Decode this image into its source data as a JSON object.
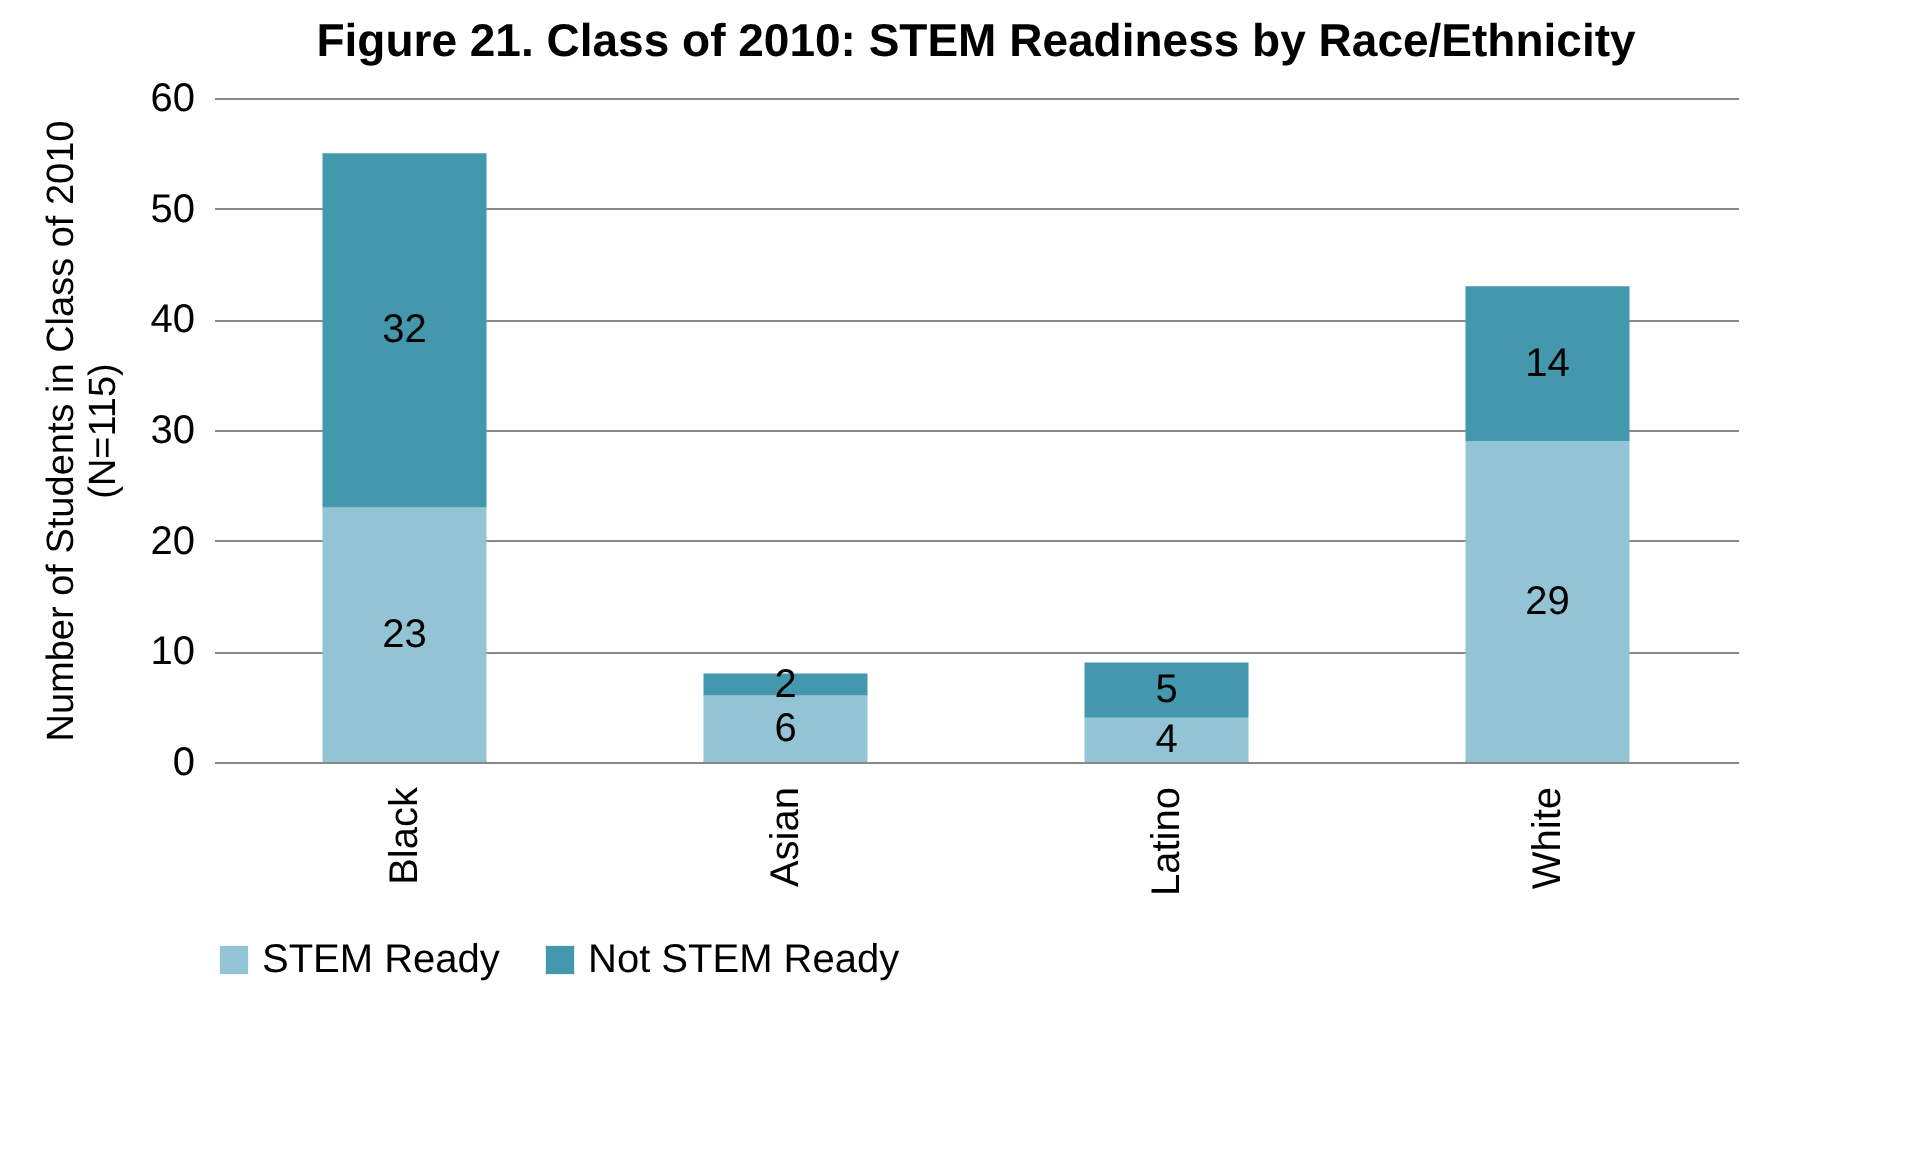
{
  "chart_data": {
    "type": "bar",
    "title": "Figure 21. Class of 2010: STEM Readiness by Race/Ethnicity",
    "ylabel": "Number of Students in Class of 2010 (N=115)",
    "categories": [
      "Black",
      "Asian",
      "Latino",
      "White"
    ],
    "stacked": true,
    "data_labels": true,
    "grid": "y",
    "legend": "bottom",
    "ylim": [
      0,
      60
    ],
    "yticks": [
      0,
      10,
      20,
      30,
      40,
      50,
      60
    ],
    "series": [
      {
        "name": "STEM Ready",
        "color": "#93c4d6",
        "values": [
          23,
          6,
          4,
          29
        ]
      },
      {
        "name": "Not STEM Ready",
        "color": "#4398ae",
        "values": [
          32,
          2,
          5,
          14
        ]
      }
    ]
  }
}
